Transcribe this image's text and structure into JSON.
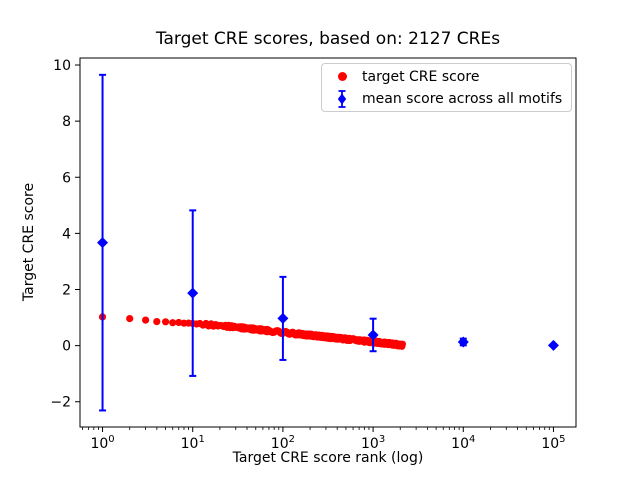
{
  "figure": {
    "title": "Target CRE scores, based on: 2127 CREs",
    "xlabel": "Target CRE score rank (log)",
    "ylabel": "Target CRE score"
  },
  "legend": {
    "items": [
      {
        "label": "target CRE score",
        "marker": "red-circle",
        "color": "#ff0000"
      },
      {
        "label": "mean score across all motifs",
        "marker": "blue-diamond-errorbar",
        "color": "#0000ff"
      }
    ]
  },
  "chart_data": {
    "type": "scatter",
    "title": "Target CRE scores, based on: 2127 CREs",
    "xlabel": "Target CRE score rank (log)",
    "ylabel": "Target CRE score",
    "x_scale": "log",
    "xlim_log10": [
      -0.25,
      5.25
    ],
    "ylim": [
      -2.9,
      10.25
    ],
    "x_tick_exponents": [
      0,
      1,
      2,
      3,
      4,
      5
    ],
    "y_ticks": [
      -2,
      0,
      2,
      4,
      6,
      8,
      10
    ],
    "grid": false,
    "legend_position": "upper right",
    "series": [
      {
        "name": "target CRE score",
        "marker": "circle",
        "color": "#ff0000",
        "count": 2127,
        "description": "one dot per rank 1..2127; score decays smoothly from ~1.0 at rank 1 to ~0 at rank 2127",
        "anchors_rank_score": [
          [
            1,
            1.02
          ],
          [
            2,
            0.97
          ],
          [
            3,
            0.9
          ],
          [
            5,
            0.84
          ],
          [
            10,
            0.79
          ],
          [
            20,
            0.71
          ],
          [
            30,
            0.66
          ],
          [
            50,
            0.58
          ],
          [
            100,
            0.47
          ],
          [
            200,
            0.37
          ],
          [
            300,
            0.31
          ],
          [
            500,
            0.23
          ],
          [
            1000,
            0.13
          ],
          [
            1500,
            0.07
          ],
          [
            2127,
            0.01
          ]
        ]
      },
      {
        "name": "mean score across all motifs",
        "marker": "diamond",
        "color": "#0000ff",
        "x": [
          1,
          10,
          100,
          1000,
          10000,
          100000
        ],
        "y": [
          3.67,
          1.87,
          0.97,
          0.38,
          0.13,
          0.01
        ],
        "yerr": [
          5.98,
          2.95,
          1.48,
          0.58,
          0.12,
          0.04
        ]
      }
    ]
  }
}
